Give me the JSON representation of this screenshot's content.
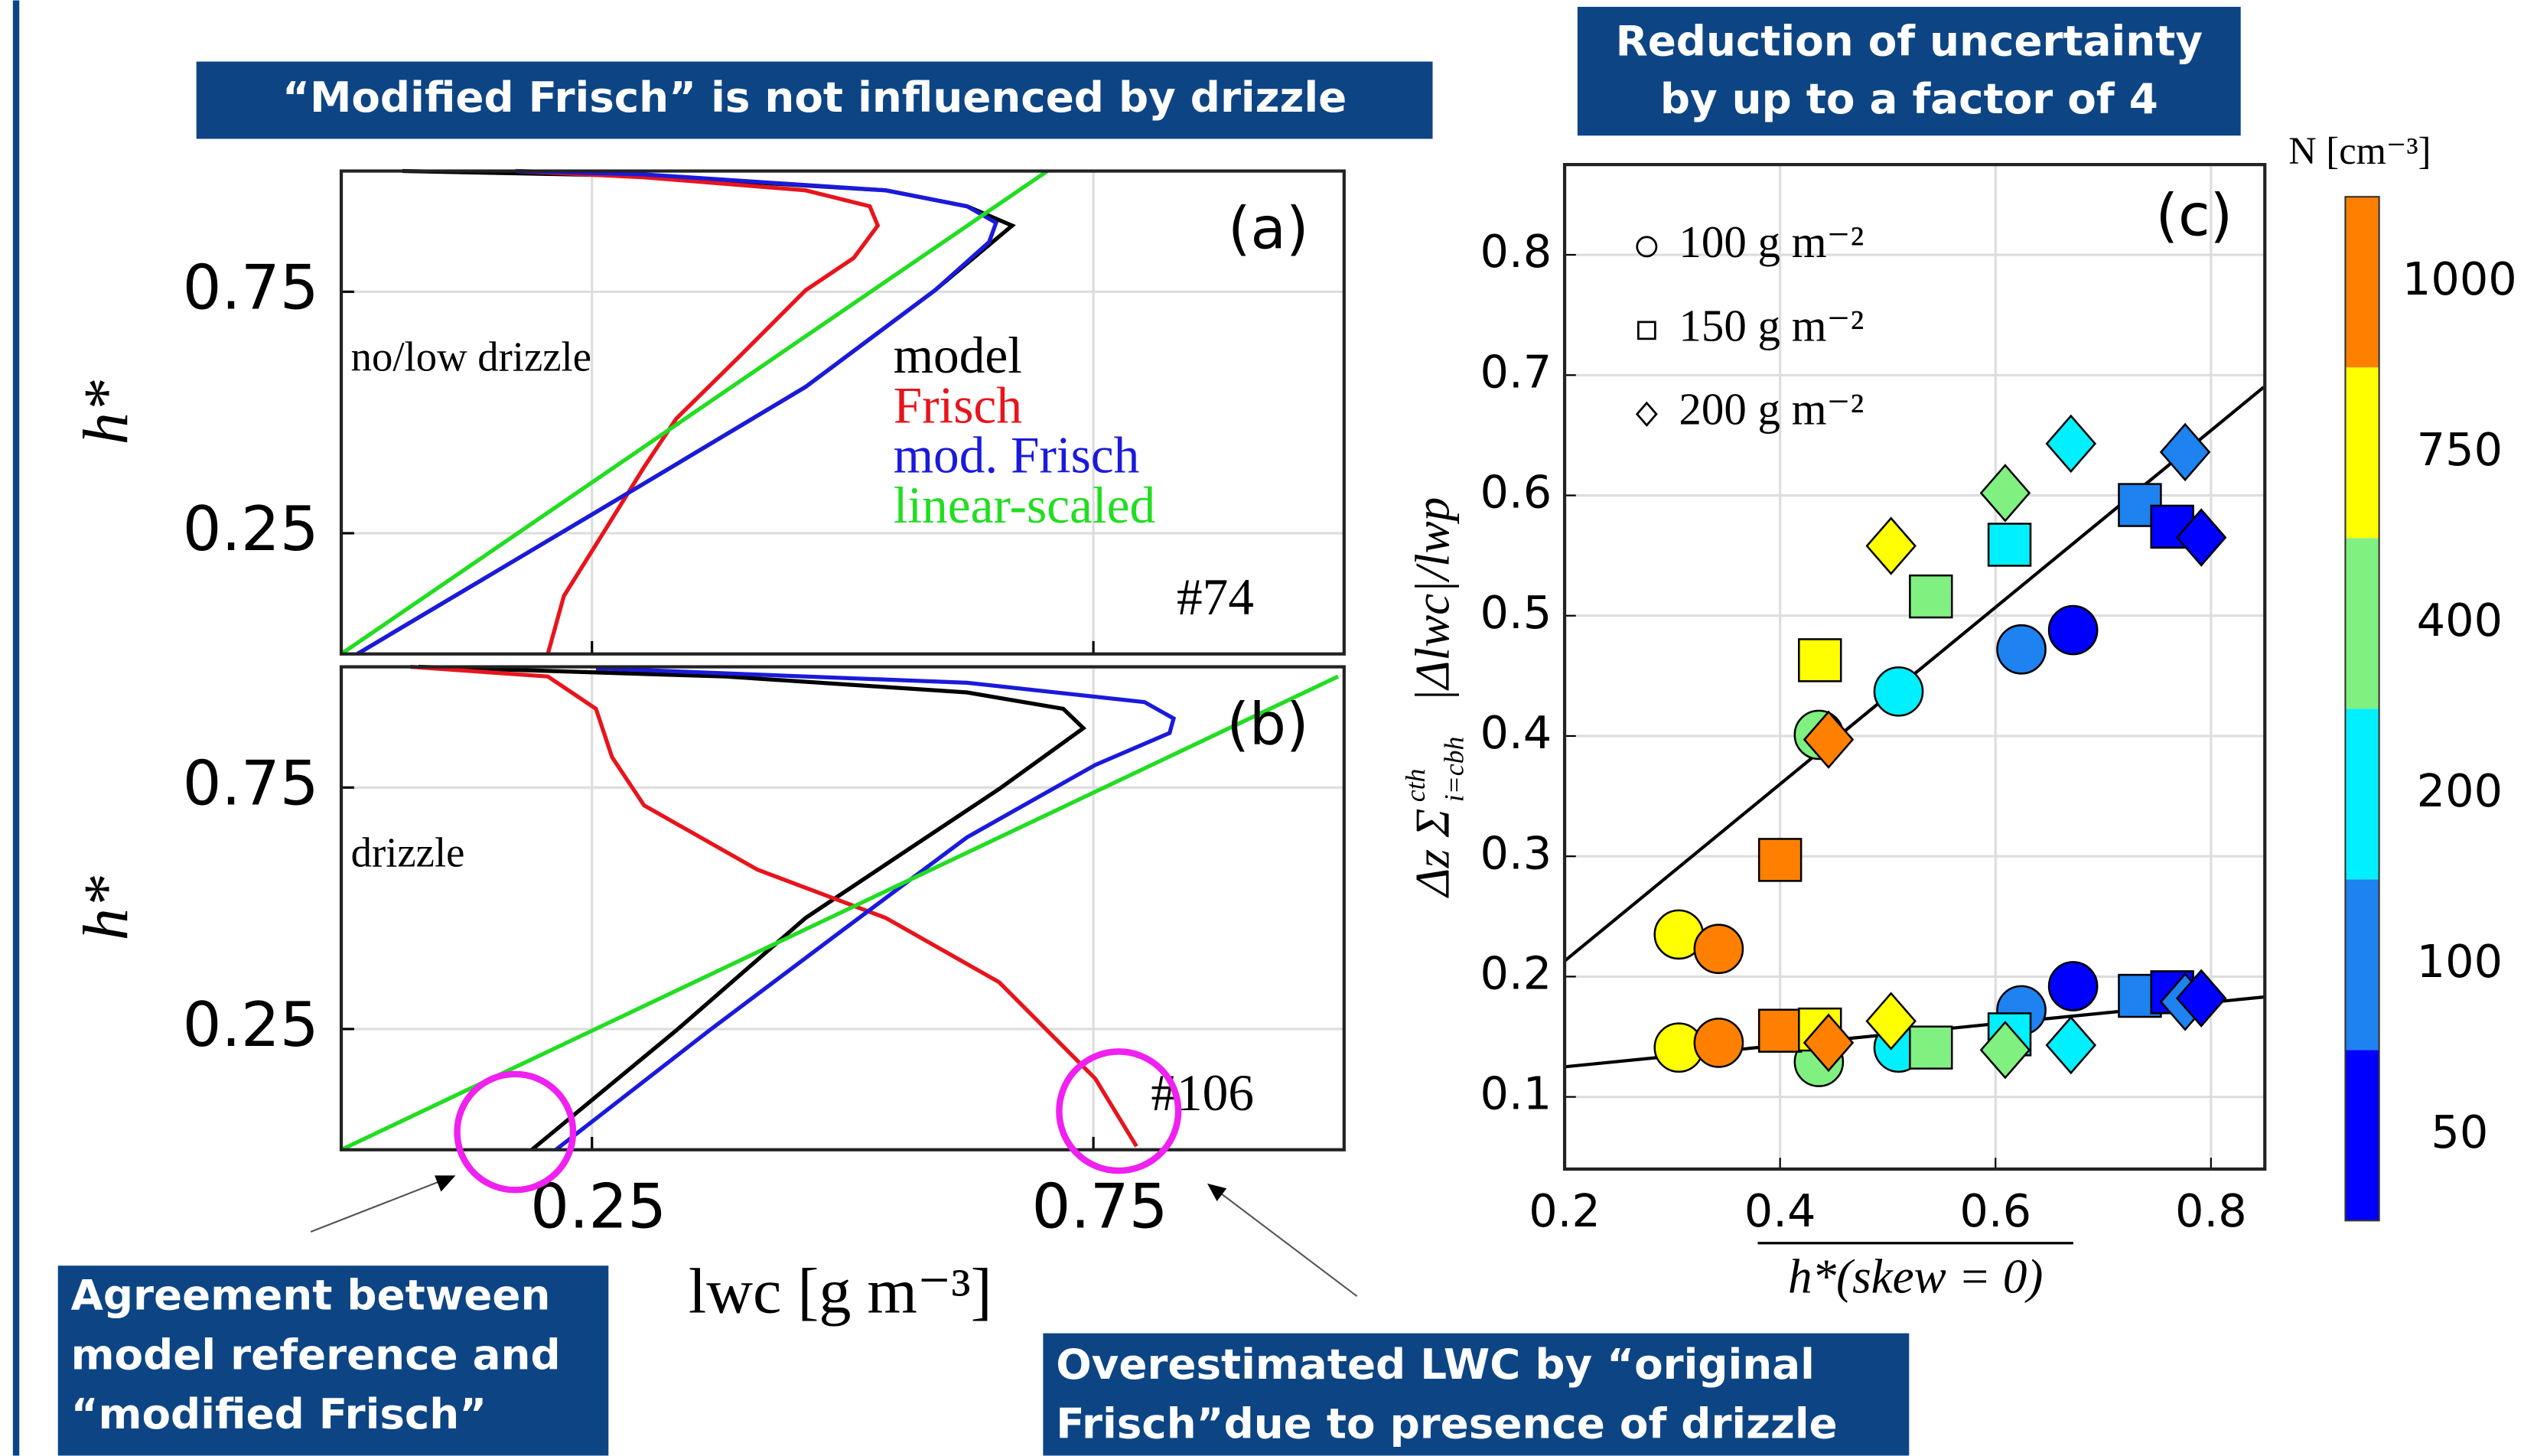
{
  "annotations": {
    "top_left": {
      "lines": [
        "“Modified Frisch” is not influenced by drizzle"
      ]
    },
    "top_right": {
      "lines": [
        "Reduction of uncertainty",
        "by up to a factor of 4"
      ]
    },
    "bottom_left": {
      "lines": [
        "Agreement  between",
        "model reference and",
        "“modified Frisch”"
      ]
    },
    "bottom_right": {
      "lines": [
        "Overestimated  LWC  by  “original",
        "Frisch”due to presence of drizzle"
      ]
    }
  },
  "chart_data": [
    {
      "type": "line",
      "panel_label": "(a)",
      "regime_label": "no/low drizzle",
      "case_label": "#74",
      "ylabel": "h*",
      "xlim": [
        0,
        1
      ],
      "ylim": [
        0,
        1
      ],
      "yticks": [
        0.25,
        0.75
      ],
      "grid": true,
      "series": [
        {
          "name": "model",
          "color": "#000000",
          "x": [
            0.016,
            0.302,
            0.463,
            0.592,
            0.669,
            0.624,
            0.543,
            0.302,
            0.061
          ],
          "values": [
            0,
            0.353,
            0.553,
            0.753,
            0.887,
            0.927,
            0.96,
            0.99,
            1.0
          ]
        },
        {
          "name": "Frisch",
          "color": "#e8141c",
          "x": [
            0.206,
            0.222,
            0.262,
            0.302,
            0.334,
            0.399,
            0.463,
            0.511,
            0.535,
            0.527,
            0.463,
            0.302,
            0.174
          ],
          "values": [
            0,
            0.12,
            0.253,
            0.387,
            0.487,
            0.62,
            0.753,
            0.82,
            0.887,
            0.927,
            0.96,
            0.987,
            1.0
          ]
        },
        {
          "name": "mod. Frisch",
          "color": "#1a1adc",
          "x": [
            0.016,
            0.302,
            0.463,
            0.592,
            0.646,
            0.653,
            0.624,
            0.543,
            0.302,
            0.174
          ],
          "values": [
            0,
            0.353,
            0.553,
            0.753,
            0.853,
            0.893,
            0.927,
            0.96,
            0.993,
            1.0
          ]
        },
        {
          "name": "linear-scaled",
          "color": "#22dd22",
          "x": [
            0,
            0.704
          ],
          "values": [
            0,
            1.0
          ]
        }
      ]
    },
    {
      "type": "line",
      "panel_label": "(b)",
      "regime_label": "drizzle",
      "case_label": "#106",
      "ylabel": "h*",
      "xlabel": "lwc [g m⁻³]",
      "xlim": [
        0,
        1
      ],
      "ylim": [
        0,
        1
      ],
      "xticks": [
        0.25,
        0.75
      ],
      "yticks": [
        0.25,
        0.75
      ],
      "grid": true,
      "series": [
        {
          "color": "#000000",
          "x": [
            0.19,
            0.334,
            0.463,
            0.559,
            0.656,
            0.74,
            0.72,
            0.624,
            0.383,
            0.077
          ],
          "values": [
            0,
            0.247,
            0.48,
            0.613,
            0.747,
            0.873,
            0.913,
            0.947,
            0.98,
            1.0
          ]
        },
        {
          "color": "#e8141c",
          "x": [
            0.069,
            0.206,
            0.254,
            0.27,
            0.302,
            0.415,
            0.543,
            0.656,
            0.704,
            0.752,
            0.793
          ],
          "values": [
            1.0,
            0.98,
            0.913,
            0.813,
            0.713,
            0.58,
            0.48,
            0.347,
            0.247,
            0.147,
            0.007
          ]
        },
        {
          "color": "#1a1adc",
          "x": [
            0.214,
            0.367,
            0.495,
            0.624,
            0.752,
            0.826,
            0.83,
            0.801,
            0.624,
            0.254
          ],
          "values": [
            0,
            0.247,
            0.447,
            0.647,
            0.797,
            0.863,
            0.893,
            0.927,
            0.967,
            0.997
          ]
        },
        {
          "color": "#22dd22",
          "x": [
            0,
            0.994
          ],
          "values": [
            0,
            0.98
          ]
        }
      ]
    },
    {
      "type": "scatter",
      "panel_label": "(c)",
      "xlabel": "h*(skew = 0)",
      "ylabel": {
        "prefix": "Δz Σ",
        "upper": "cth",
        "lower": "i=cbh",
        "suffix": "|Δlwc|/lwp"
      },
      "xlim": [
        0.2,
        0.85
      ],
      "ylim": [
        0.04,
        0.875
      ],
      "xticks": [
        0.2,
        0.4,
        0.6,
        0.8
      ],
      "yticks": [
        0.1,
        0.2,
        0.3,
        0.4,
        0.5,
        0.6,
        0.7,
        0.8
      ],
      "grid": true,
      "colorbar": {
        "label": "N [cm⁻³]",
        "ticks": [
          50,
          100,
          200,
          400,
          750,
          1000
        ],
        "colors": [
          "#0000ff",
          "#1e82f0",
          "#00f0ff",
          "#80f080",
          "#ffff00",
          "#ff8000"
        ]
      },
      "series": [
        {
          "name": "100 g m⁻²",
          "marker": "circle",
          "x": [
            0.306,
            0.343,
            0.306,
            0.343,
            0.436,
            0.436,
            0.51,
            0.51,
            0.624,
            0.624,
            0.672,
            0.672
          ],
          "values": [
            0.235,
            0.223,
            0.141,
            0.145,
            0.401,
            0.129,
            0.437,
            0.141,
            0.472,
            0.172,
            0.488,
            0.192
          ],
          "N": [
            750,
            1000,
            750,
            1000,
            400,
            400,
            200,
            200,
            100,
            100,
            50,
            50
          ]
        },
        {
          "name": "150 g m⁻²",
          "marker": "square",
          "x": [
            0.4,
            0.4,
            0.437,
            0.437,
            0.54,
            0.54,
            0.613,
            0.613,
            0.734,
            0.734,
            0.764,
            0.764
          ],
          "values": [
            0.297,
            0.155,
            0.463,
            0.156,
            0.516,
            0.141,
            0.559,
            0.152,
            0.592,
            0.184,
            0.574,
            0.187
          ],
          "N": [
            1000,
            1000,
            750,
            750,
            400,
            400,
            200,
            200,
            100,
            100,
            50,
            50
          ]
        },
        {
          "name": "200 g m⁻²",
          "marker": "diamond",
          "x": [
            0.445,
            0.445,
            0.503,
            0.503,
            0.609,
            0.609,
            0.67,
            0.67,
            0.776,
            0.776,
            0.791,
            0.791
          ],
          "values": [
            0.397,
            0.145,
            0.558,
            0.163,
            0.602,
            0.139,
            0.643,
            0.143,
            0.636,
            0.179,
            0.565,
            0.182
          ],
          "N": [
            1000,
            1000,
            750,
            750,
            400,
            400,
            200,
            200,
            100,
            100,
            50,
            50
          ]
        }
      ],
      "fits": [
        {
          "color": "#000000",
          "x": [
            0.2,
            0.849
          ],
          "values": [
            0.213,
            0.69
          ]
        },
        {
          "color": "#000000",
          "x": [
            0.2,
            0.849
          ],
          "values": [
            0.125,
            0.183
          ]
        }
      ]
    }
  ]
}
